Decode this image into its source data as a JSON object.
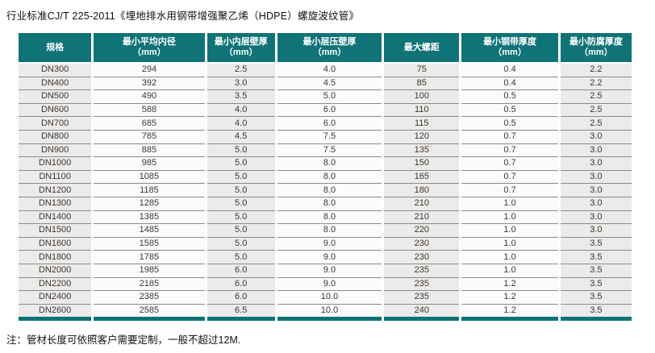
{
  "page": {
    "title": "行业标准CJ/T 225-2011《埋地排水用钢带增强聚乙烯（HDPE）螺旋波纹管》",
    "note": "注：管材长度可依照客户需要定制，一般不超过12M."
  },
  "colors": {
    "header_bg": "#107377",
    "header_text": "#ffffff",
    "column_shade": "#ecebe9",
    "column_light": "#fbfbfa",
    "row_line": "#8a8a8a",
    "bottom_bar": "#107377"
  },
  "table": {
    "headers": [
      {
        "label": "规格",
        "unit": ""
      },
      {
        "label": "最小平均内径",
        "unit": "（mm）"
      },
      {
        "label": "最小内层壁厚",
        "unit": "（mm）"
      },
      {
        "label": "最小层压壁厚",
        "unit": "（mm）"
      },
      {
        "label": "最大螺距",
        "unit": ""
      },
      {
        "label": "最小钢带厚度",
        "unit": "（mm）"
      },
      {
        "label": "最小防腐厚度",
        "unit": "（mm）"
      }
    ],
    "rows": [
      [
        "DN300",
        "294",
        "2.5",
        "4.0",
        "75",
        "0.4",
        "2.2"
      ],
      [
        "DN400",
        "392",
        "3.0",
        "4.5",
        "85",
        "0.4",
        "2.2"
      ],
      [
        "DN500",
        "490",
        "3.5",
        "5.0",
        "100",
        "0.5",
        "2.5"
      ],
      [
        "DN600",
        "588",
        "4.0",
        "6.0",
        "110",
        "0.5",
        "2.5"
      ],
      [
        "DN700",
        "685",
        "4.0",
        "6.0",
        "115",
        "0.5",
        "2.5"
      ],
      [
        "DN800",
        "785",
        "4.5",
        "7.5",
        "120",
        "0.7",
        "3.0"
      ],
      [
        "DN900",
        "885",
        "5.0",
        "7.5",
        "135",
        "0.7",
        "3.0"
      ],
      [
        "DN1000",
        "985",
        "5.0",
        "8.0",
        "150",
        "0.7",
        "3.0"
      ],
      [
        "DN1100",
        "1085",
        "5.0",
        "8.0",
        "165",
        "0.7",
        "3.0"
      ],
      [
        "DN1200",
        "1185",
        "5.0",
        "8.0",
        "180",
        "0.7",
        "3.0"
      ],
      [
        "DN1300",
        "1285",
        "5.0",
        "8.0",
        "210",
        "1.0",
        "3.0"
      ],
      [
        "DN1400",
        "1385",
        "5.0",
        "8.0",
        "210",
        "1.0",
        "3.0"
      ],
      [
        "DN1500",
        "1485",
        "5.0",
        "8.0",
        "220",
        "1.0",
        "3.0"
      ],
      [
        "DN1600",
        "1585",
        "5.0",
        "9.0",
        "230",
        "1.0",
        "3.5"
      ],
      [
        "DN1800",
        "1785",
        "5.0",
        "9.0",
        "230",
        "1.0",
        "3.5"
      ],
      [
        "DN2000",
        "1985",
        "6.0",
        "9.0",
        "235",
        "1.0",
        "3.5"
      ],
      [
        "DN2200",
        "2185",
        "6.0",
        "9.0",
        "235",
        "1.2",
        "3.5"
      ],
      [
        "DN2400",
        "2385",
        "6.0",
        "10.0",
        "235",
        "1.2",
        "3.5"
      ],
      [
        "DN2600",
        "2585",
        "6.5",
        "10.0",
        "240",
        "1.2",
        "3.5"
      ]
    ]
  }
}
